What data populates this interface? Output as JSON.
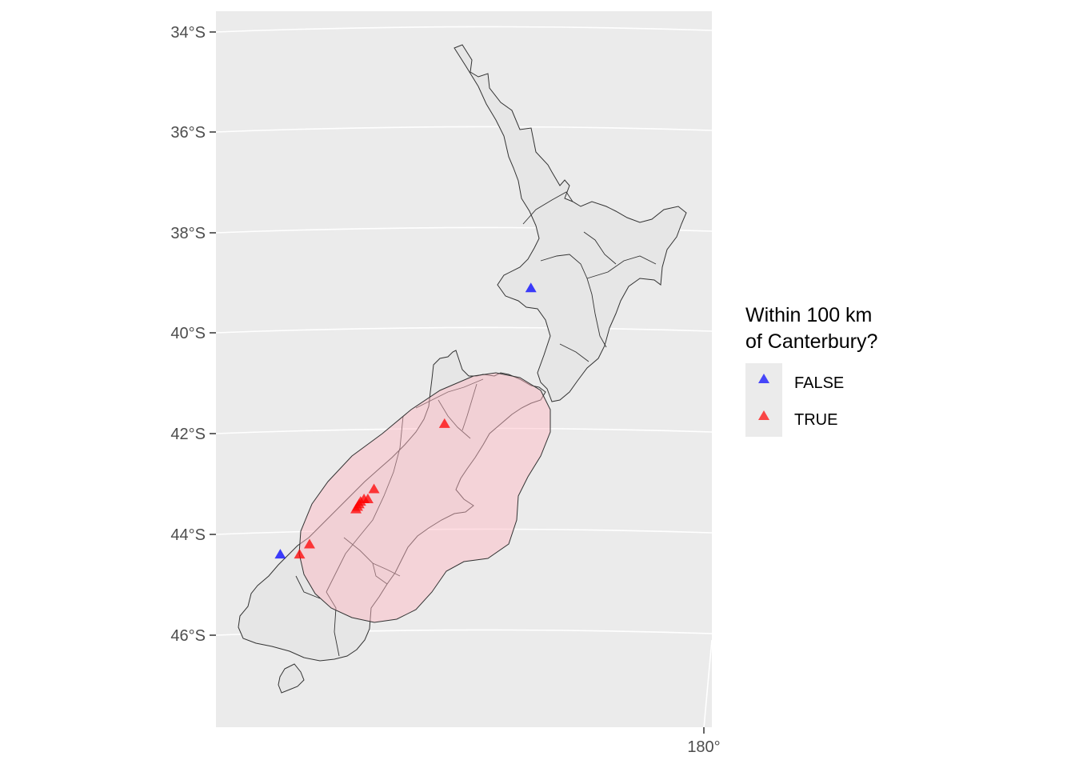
{
  "map": {
    "title": "",
    "y_axis": {
      "ticks": [
        "34°S",
        "36°S",
        "38°S",
        "40°S",
        "42°S",
        "44°S",
        "46°S"
      ],
      "lat_values": [
        -34,
        -36,
        -38,
        -40,
        -42,
        -44,
        -46
      ]
    },
    "x_axis": {
      "ticks": [
        "180°"
      ],
      "lon_values": [
        180
      ]
    },
    "legend": {
      "title_line1": "Within 100 km",
      "title_line2": "of Canterbury?",
      "items": [
        {
          "label": "FALSE",
          "color": "#0000ff"
        },
        {
          "label": "TRUE",
          "color": "#ff0000"
        }
      ]
    },
    "colors": {
      "panel_background": "#ebebeb",
      "gridline": "#ffffff",
      "land_fill": "#e6e6e6",
      "boundary": "#333333",
      "buffer_fill": "#ffb6c1",
      "false_points": "#0000ff",
      "true_points": "#ff0000"
    },
    "points_false": [
      {
        "lon": 175.7,
        "lat": -39.1
      },
      {
        "lon": 168.1,
        "lat": -44.4
      }
    ],
    "points_true": [
      {
        "lon": 172.9,
        "lat": -41.8
      },
      {
        "lon": 170.8,
        "lat": -43.1
      },
      {
        "lon": 170.6,
        "lat": -43.3
      },
      {
        "lon": 170.5,
        "lat": -43.3
      },
      {
        "lon": 170.4,
        "lat": -43.35
      },
      {
        "lon": 170.35,
        "lat": -43.4
      },
      {
        "lon": 170.3,
        "lat": -43.45
      },
      {
        "lon": 170.25,
        "lat": -43.5
      },
      {
        "lon": 168.9,
        "lat": -44.2
      },
      {
        "lon": 168.6,
        "lat": -44.4
      }
    ]
  }
}
